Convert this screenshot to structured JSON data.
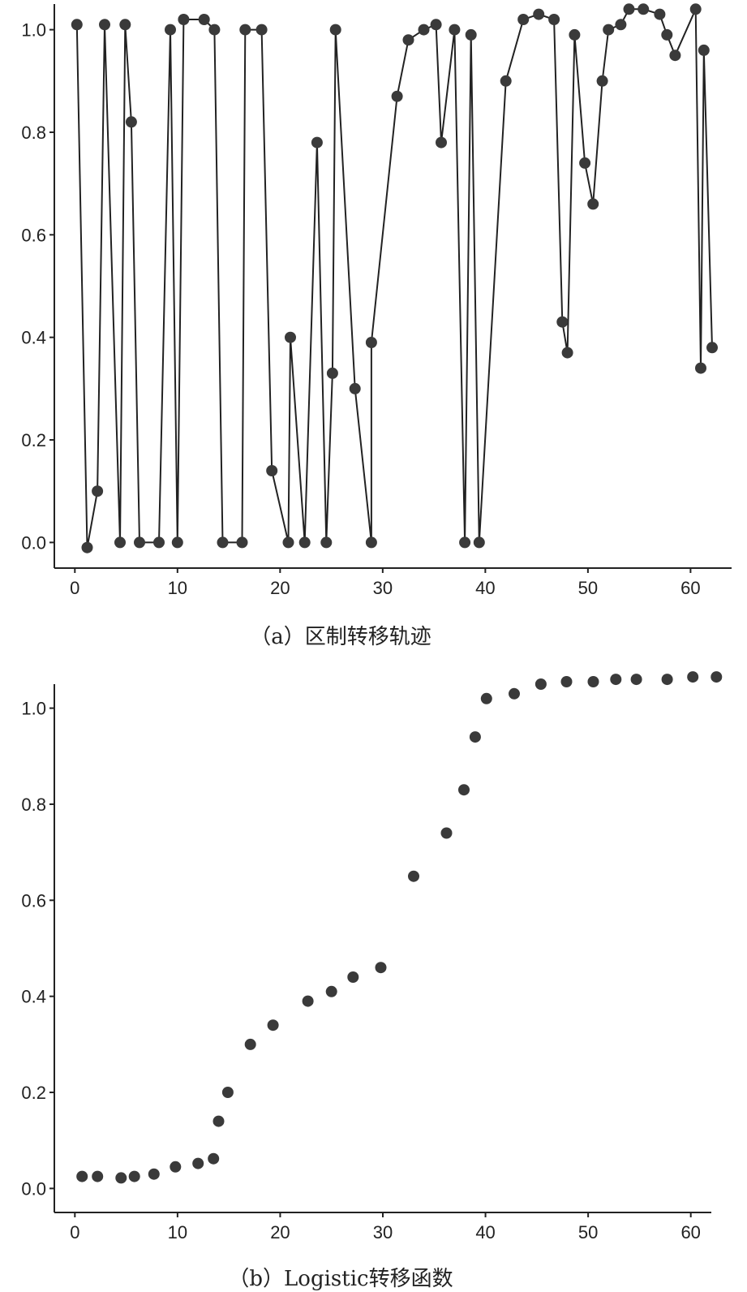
{
  "chart_data": [
    {
      "type": "line",
      "caption": "（a）区制转移轨迹",
      "xlabel": "",
      "ylabel": "",
      "xlim": [
        -2,
        64
      ],
      "ylim": [
        -0.05,
        1.05
      ],
      "xticks": [
        0,
        10,
        20,
        30,
        40,
        50,
        60
      ],
      "yticks": [
        0.0,
        0.2,
        0.4,
        0.6,
        0.8,
        1.0
      ],
      "ytick_labels": [
        "0.0",
        "0.2",
        "0.4",
        "0.6",
        "0.8",
        "1.0"
      ],
      "grid": false,
      "markers": true,
      "series": [
        {
          "x": [
            0.2,
            1.2,
            2.2,
            2.9,
            4.4,
            4.9,
            5.5,
            6.3,
            8.2,
            9.3,
            10.0,
            10.6,
            12.6,
            13.6,
            14.4,
            16.3,
            16.6,
            18.2,
            19.2,
            20.8,
            21.0,
            22.4,
            23.6,
            24.5,
            25.1,
            25.4,
            27.3,
            28.9,
            28.9,
            31.4,
            32.5,
            34.0,
            35.2,
            35.7,
            37.0,
            38.0,
            38.6,
            39.4,
            42.0,
            43.7,
            45.2,
            46.7,
            47.5,
            48.0,
            48.7,
            49.7,
            50.5,
            51.4,
            52.0,
            53.2,
            54.0,
            55.4,
            57.0,
            57.7,
            58.5,
            60.5,
            61.0,
            61.3,
            62.1
          ],
          "y": [
            1.01,
            -0.01,
            0.1,
            1.01,
            0.0,
            1.01,
            0.82,
            0.0,
            0.0,
            1.0,
            0.0,
            1.02,
            1.02,
            1.0,
            0.0,
            0.0,
            1.0,
            1.0,
            0.14,
            0.0,
            0.4,
            0.0,
            0.78,
            0.0,
            0.33,
            1.0,
            0.3,
            0.0,
            0.39,
            0.87,
            0.98,
            1.0,
            1.01,
            0.78,
            1.0,
            0.0,
            0.99,
            0.0,
            0.9,
            1.02,
            1.03,
            1.02,
            0.43,
            0.37,
            0.99,
            0.74,
            0.66,
            0.9,
            1.0,
            1.01,
            1.04,
            1.04,
            1.03,
            0.99,
            0.95,
            1.04,
            0.34,
            0.96,
            0.38
          ]
        }
      ]
    },
    {
      "type": "scatter",
      "caption": "（b）Logistic转移函数",
      "xlabel": "",
      "ylabel": "",
      "xlim": [
        -2,
        62
      ],
      "ylim": [
        -0.05,
        1.05
      ],
      "xticks": [
        0,
        10,
        20,
        30,
        40,
        50,
        60
      ],
      "yticks": [
        0.0,
        0.2,
        0.4,
        0.6,
        0.8,
        1.0
      ],
      "ytick_labels": [
        "0.0",
        "0.2",
        "0.4",
        "0.6",
        "0.8",
        "1.0"
      ],
      "grid": false,
      "series": [
        {
          "x": [
            0.7,
            2.2,
            4.5,
            5.8,
            7.7,
            9.8,
            12.0,
            13.5,
            14.0,
            14.9,
            17.1,
            19.3,
            22.7,
            25.0,
            27.1,
            29.8,
            33.0,
            36.2,
            37.9,
            39.0,
            40.1,
            42.8,
            45.4,
            47.9,
            50.5,
            52.7,
            54.7,
            57.7,
            60.2,
            62.5
          ],
          "y": [
            0.025,
            0.025,
            0.022,
            0.025,
            0.03,
            0.045,
            0.052,
            0.062,
            0.14,
            0.2,
            0.3,
            0.34,
            0.39,
            0.41,
            0.44,
            0.46,
            0.65,
            0.74,
            0.83,
            0.94,
            1.02,
            1.03,
            1.05,
            1.055,
            1.055,
            1.06,
            1.06,
            1.06,
            1.065,
            1.065
          ]
        }
      ]
    }
  ]
}
